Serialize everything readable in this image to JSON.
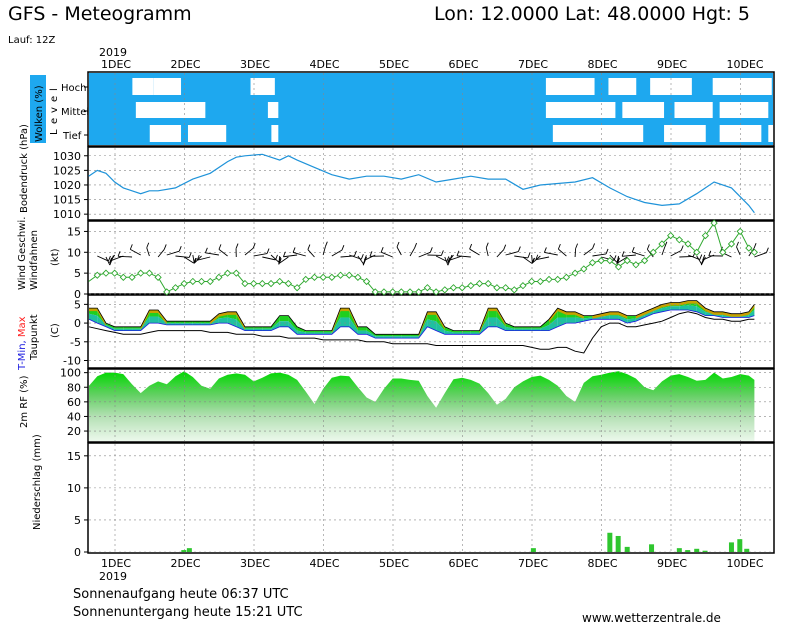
{
  "header": {
    "title": "GFS - Meteogramm",
    "location": "Lon: 12.0000  Lat: 48.0000  Hgt: 5",
    "run": "Lauf: 12Z"
  },
  "footer": {
    "sunrise": "Sonnenaufgang heute 06:37 UTC",
    "sunset": "Sonnenuntergang heute 15:21 UTC",
    "website": "www.wetterzentrale.de"
  },
  "colors": {
    "cloud_blue": "#1ea8ef",
    "pressure_line": "#1f93d9",
    "rain_green": "#2fc62f",
    "humidity_green": "#1fd11f",
    "wind_green": "#2fa82f",
    "tmin_blue": "#1a1ae0",
    "tmax_red": "#ff2020",
    "dewpoint_black": "#000000"
  },
  "chart_data": [
    {
      "type": "area",
      "name": "clouds",
      "ylabel": "Wolken (%)",
      "side_label": "Level",
      "levels": [
        "Hoch",
        "Mittel",
        "Tief"
      ],
      "x_ticks": [
        "1DEC",
        "2DEC",
        "3DEC",
        "4DEC",
        "5DEC",
        "6DEC",
        "7DEC",
        "8DEC",
        "9DEC",
        "10DEC"
      ],
      "year": "2019",
      "x_range_days": [
        0.0,
        9.58
      ],
      "clear_periods": [
        {
          "level": "Hoch",
          "from": 0.25,
          "to": 0.55
        },
        {
          "level": "Hoch",
          "from": 0.55,
          "to": 0.95
        },
        {
          "level": "Hoch",
          "from": 1.95,
          "to": 2.3
        },
        {
          "level": "Hoch",
          "from": 6.2,
          "to": 6.9
        },
        {
          "level": "Hoch",
          "from": 7.1,
          "to": 7.5
        },
        {
          "level": "Hoch",
          "from": 7.7,
          "to": 8.3
        },
        {
          "level": "Hoch",
          "from": 8.6,
          "to": 9.45
        },
        {
          "level": "Mittel",
          "from": 0.3,
          "to": 1.3
        },
        {
          "level": "Mittel",
          "from": 2.2,
          "to": 2.35
        },
        {
          "level": "Mittel",
          "from": 6.2,
          "to": 7.2
        },
        {
          "level": "Mittel",
          "from": 7.3,
          "to": 7.9
        },
        {
          "level": "Mittel",
          "from": 8.05,
          "to": 8.6
        },
        {
          "level": "Mittel",
          "from": 8.7,
          "to": 9.4
        },
        {
          "level": "Tief",
          "from": 0.5,
          "to": 0.95
        },
        {
          "level": "Tief",
          "from": 1.05,
          "to": 1.6
        },
        {
          "level": "Tief",
          "from": 2.25,
          "to": 2.35
        },
        {
          "level": "Tief",
          "from": 6.3,
          "to": 7.6
        },
        {
          "level": "Tief",
          "from": 7.9,
          "to": 8.5
        },
        {
          "level": "Tief",
          "from": 8.7,
          "to": 9.3
        },
        {
          "level": "Tief",
          "from": 9.4,
          "to": 9.5
        }
      ]
    },
    {
      "type": "line",
      "name": "pressure",
      "ylabel": "Bodendruck (hPa)",
      "ylim": [
        1008,
        1033
      ],
      "yticks": [
        1010,
        1015,
        1020,
        1025,
        1030
      ],
      "x": [
        0.0,
        0.125,
        0.25,
        0.375,
        0.5,
        0.625,
        0.75,
        0.875,
        1.0,
        1.25,
        1.5,
        1.75,
        2.0,
        2.125,
        2.25,
        2.5,
        2.75,
        2.875,
        3.0,
        3.25,
        3.5,
        3.75,
        4.0,
        4.25,
        4.5,
        4.75,
        5.0,
        5.25,
        5.5,
        5.75,
        6.0,
        6.25,
        6.5,
        6.75,
        7.0,
        7.25,
        7.5,
        7.75,
        8.0,
        8.25,
        8.5,
        8.75,
        9.0,
        9.25,
        9.5,
        9.58
      ],
      "y": [
        1023,
        1025,
        1024,
        1021,
        1019,
        1018,
        1017,
        1018,
        1018,
        1019,
        1022,
        1024,
        1028,
        1029.5,
        1030,
        1030.5,
        1028.5,
        1030,
        1028.5,
        1026,
        1023.5,
        1022,
        1023,
        1023,
        1022,
        1023.5,
        1021,
        1022,
        1023,
        1022,
        1022,
        1018.5,
        1020,
        1020.5,
        1021,
        1022.5,
        1019,
        1016,
        1014,
        1013,
        1013.5,
        1017,
        1021,
        1019,
        1013,
        1010.5
      ]
    },
    {
      "type": "line",
      "name": "wind",
      "ylabel": "Wind Geschwi.",
      "ylabel_secondary": "Windfahnen",
      "unit": "(kt)",
      "ylim": [
        0,
        17.5
      ],
      "yticks": [
        0,
        5,
        10,
        15
      ],
      "x": [
        0.0,
        0.125,
        0.25,
        0.375,
        0.5,
        0.625,
        0.75,
        0.875,
        1.0,
        1.125,
        1.25,
        1.375,
        1.5,
        1.625,
        1.75,
        1.875,
        2.0,
        2.125,
        2.25,
        2.375,
        2.5,
        2.625,
        2.75,
        2.875,
        3.0,
        3.125,
        3.25,
        3.375,
        3.5,
        3.625,
        3.75,
        3.875,
        4.0,
        4.125,
        4.25,
        4.375,
        4.5,
        4.625,
        4.75,
        4.875,
        5.0,
        5.125,
        5.25,
        5.375,
        5.5,
        5.625,
        5.75,
        5.875,
        6.0,
        6.125,
        6.25,
        6.375,
        6.5,
        6.625,
        6.75,
        6.875,
        7.0,
        7.125,
        7.25,
        7.375,
        7.5,
        7.625,
        7.75,
        7.875,
        8.0,
        8.125,
        8.25,
        8.375,
        8.5,
        8.625,
        8.75,
        8.875,
        9.0,
        9.125,
        9.25,
        9.375,
        9.5,
        9.58
      ],
      "y": [
        3,
        4.5,
        5,
        5,
        4,
        4,
        5,
        5,
        4,
        0.5,
        1.5,
        2.5,
        3,
        3,
        3,
        4,
        5,
        5,
        2.5,
        2.5,
        2.5,
        2.5,
        3,
        2.5,
        1.5,
        3.5,
        4,
        4,
        4,
        4.5,
        4.5,
        4,
        3,
        0.5,
        0.5,
        0.5,
        0.5,
        0.5,
        0.5,
        1.5,
        0.5,
        1,
        1.5,
        1.5,
        2,
        2.5,
        2.5,
        1.5,
        1.5,
        1,
        2,
        3,
        3,
        3.5,
        3.5,
        4,
        5,
        6,
        7.5,
        8,
        8,
        6.5,
        8,
        7,
        8,
        10,
        12,
        14,
        13,
        12,
        10,
        14,
        17,
        10,
        12,
        15,
        11,
        10
      ]
    },
    {
      "type": "area",
      "name": "temperature",
      "ylabel": "T-Min, Max",
      "ylabel_secondary": "Taupunkt",
      "unit": "(C)",
      "ylim": [
        -12,
        7.5
      ],
      "yticks": [
        -10,
        -5,
        0,
        5
      ],
      "x": [
        0.0,
        0.125,
        0.25,
        0.375,
        0.5,
        0.625,
        0.75,
        0.875,
        1.0,
        1.125,
        1.25,
        1.375,
        1.5,
        1.625,
        1.75,
        1.875,
        2.0,
        2.125,
        2.25,
        2.375,
        2.5,
        2.625,
        2.75,
        2.875,
        3.0,
        3.125,
        3.25,
        3.375,
        3.5,
        3.625,
        3.75,
        3.875,
        4.0,
        4.125,
        4.25,
        4.375,
        4.5,
        4.625,
        4.75,
        4.875,
        5.0,
        5.125,
        5.25,
        5.375,
        5.5,
        5.625,
        5.75,
        5.875,
        6.0,
        6.125,
        6.25,
        6.375,
        6.5,
        6.625,
        6.75,
        6.875,
        7.0,
        7.125,
        7.25,
        7.375,
        7.5,
        7.625,
        7.75,
        7.875,
        8.0,
        8.125,
        8.25,
        8.375,
        8.5,
        8.625,
        8.75,
        8.875,
        9.0,
        9.125,
        9.25,
        9.375,
        9.5,
        9.58
      ],
      "series": [
        {
          "name": "T-Max",
          "values": [
            4,
            4,
            0,
            -1,
            -1,
            -1,
            -1,
            3.5,
            3.5,
            0.5,
            0.5,
            0.5,
            0.5,
            0.5,
            0.5,
            2.5,
            3,
            3,
            -1,
            -1,
            -1,
            -1,
            2,
            2,
            -1,
            -2,
            -2,
            -2,
            -2,
            4,
            4,
            -1,
            -1,
            -3,
            -3,
            -3,
            -3,
            -3,
            -3,
            3,
            3,
            -1,
            -2,
            -2,
            -2,
            -2,
            4,
            4,
            0,
            -1,
            -1,
            -1,
            -1,
            1,
            4,
            3,
            3,
            2,
            2,
            2.5,
            3,
            3,
            2,
            2,
            3,
            4,
            5,
            5.5,
            5.5,
            6,
            6,
            4,
            3,
            3,
            2.5,
            2.5,
            3,
            5
          ]
        },
        {
          "name": "T-Min",
          "values": [
            1,
            0,
            -1,
            -2,
            -2,
            -2,
            -2,
            0,
            0,
            -0.5,
            -0.5,
            -0.5,
            -0.5,
            -0.5,
            -0.5,
            0,
            0,
            -1,
            -2,
            -2,
            -2,
            -2,
            -1,
            -1,
            -3,
            -3,
            -3,
            -3,
            -3,
            -1,
            -1,
            -3,
            -3,
            -4,
            -4,
            -4,
            -4,
            -4,
            -4,
            -1,
            -2,
            -3,
            -3,
            -3,
            -3,
            -3,
            -1,
            -1,
            -2,
            -2,
            -2,
            -2,
            -2,
            -2,
            -1,
            0,
            0,
            0.5,
            1,
            1,
            1,
            1,
            0,
            0.5,
            1.5,
            2.5,
            3,
            3.5,
            3.5,
            3.5,
            3,
            2,
            2,
            1.5,
            1.5,
            1.5,
            1.5,
            2
          ]
        },
        {
          "name": "Taupunkt",
          "values": [
            -1,
            -1.5,
            -2,
            -2.5,
            -3,
            -3,
            -3,
            -2.5,
            -2,
            -2,
            -2,
            -2,
            -2,
            -2,
            -2.5,
            -2.5,
            -2.5,
            -3,
            -3,
            -3,
            -3.5,
            -3.5,
            -3.5,
            -4,
            -4,
            -4,
            -4,
            -4.5,
            -4.5,
            -4.5,
            -4.5,
            -4.5,
            -5,
            -5,
            -5,
            -5.5,
            -5.5,
            -5.5,
            -5.5,
            -5.5,
            -6,
            -6,
            -6,
            -6,
            -6,
            -6,
            -6,
            -6,
            -6,
            -6,
            -6,
            -6.5,
            -7,
            -7,
            -6.5,
            -6.5,
            -7.5,
            -8,
            -4,
            -1,
            0,
            0,
            -1,
            -1,
            -0.5,
            0,
            0.5,
            1.5,
            2.5,
            3,
            2.5,
            1.5,
            1,
            1,
            0.5,
            0.5,
            1,
            1
          ]
        }
      ]
    },
    {
      "type": "area",
      "name": "humidity",
      "ylabel": "2m RF (%)",
      "ylim": [
        5,
        105
      ],
      "yticks": [
        20,
        40,
        60,
        80,
        100
      ],
      "x": [
        0.0,
        0.125,
        0.25,
        0.375,
        0.5,
        0.625,
        0.75,
        0.875,
        1.0,
        1.125,
        1.25,
        1.375,
        1.5,
        1.625,
        1.75,
        1.875,
        2.0,
        2.125,
        2.25,
        2.375,
        2.5,
        2.625,
        2.75,
        2.875,
        3.0,
        3.125,
        3.25,
        3.375,
        3.5,
        3.625,
        3.75,
        3.875,
        4.0,
        4.125,
        4.25,
        4.375,
        4.5,
        4.625,
        4.75,
        4.875,
        5.0,
        5.125,
        5.25,
        5.375,
        5.5,
        5.625,
        5.75,
        5.875,
        6.0,
        6.125,
        6.25,
        6.375,
        6.5,
        6.625,
        6.75,
        6.875,
        7.0,
        7.125,
        7.25,
        7.375,
        7.5,
        7.625,
        7.75,
        7.875,
        8.0,
        8.125,
        8.25,
        8.375,
        8.5,
        8.625,
        8.75,
        8.875,
        9.0,
        9.125,
        9.25,
        9.375,
        9.5,
        9.58
      ],
      "y": [
        82,
        95,
        100,
        100,
        98,
        84,
        72,
        82,
        88,
        84,
        95,
        102,
        94,
        82,
        78,
        92,
        97,
        99,
        97,
        88,
        93,
        99,
        100,
        97,
        90,
        74,
        57,
        78,
        93,
        96,
        95,
        80,
        66,
        60,
        78,
        92,
        92,
        90,
        89,
        68,
        52,
        72,
        91,
        93,
        90,
        85,
        72,
        56,
        64,
        80,
        88,
        94,
        96,
        90,
        82,
        68,
        60,
        86,
        95,
        97,
        100,
        102,
        98,
        92,
        80,
        76,
        88,
        96,
        98,
        94,
        89,
        90,
        100,
        92,
        94,
        98,
        96,
        90
      ]
    },
    {
      "type": "bar",
      "name": "precipitation",
      "ylabel": "Niederschlag (mm)",
      "ylim": [
        0,
        17
      ],
      "yticks": [
        0,
        5,
        10,
        15
      ],
      "x": [
        1.37,
        1.45,
        6.4,
        7.5,
        7.62,
        7.75,
        8.1,
        8.5,
        8.62,
        8.75,
        8.87,
        9.25,
        9.37,
        9.47
      ],
      "values": [
        0.3,
        0.6,
        0.6,
        3.0,
        2.5,
        0.8,
        1.2,
        0.6,
        0.3,
        0.5,
        0.2,
        1.5,
        2.0,
        0.5
      ]
    }
  ]
}
